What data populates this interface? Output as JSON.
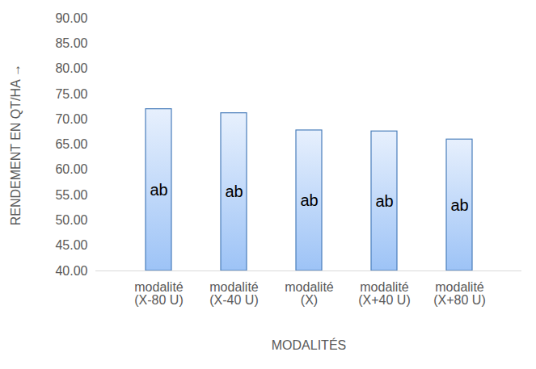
{
  "chart_data": {
    "type": "bar",
    "x_label": "MODALITÉS",
    "y_label": "RENDEMENT EN QT/HA",
    "categories": [
      "modalité (X-80 U)",
      "modalité (X-40 U)",
      "modalité (X)",
      "modalité (X+40 U)",
      "modalité (X+80 U)"
    ],
    "values": [
      72.0,
      71.2,
      67.8,
      67.6,
      66.0
    ],
    "annotations": [
      "ab",
      "ab",
      "ab",
      "ab",
      "ab"
    ],
    "color": "#9dc3f6",
    "ylim": [
      40,
      90
    ],
    "yticks": [
      {
        "value": 40,
        "label": "40.00"
      },
      {
        "value": 45,
        "label": "45.00"
      },
      {
        "value": 50,
        "label": "50.00"
      },
      {
        "value": 55,
        "label": "55.00"
      },
      {
        "value": 60,
        "label": "60.00"
      },
      {
        "value": 65,
        "label": "65.00"
      },
      {
        "value": 70,
        "label": "70.00"
      },
      {
        "value": 75,
        "label": "75.00"
      },
      {
        "value": 80,
        "label": "80.00"
      },
      {
        "value": 85,
        "label": "85.00"
      },
      {
        "value": 90,
        "label": "90.00"
      }
    ],
    "grid": false
  }
}
